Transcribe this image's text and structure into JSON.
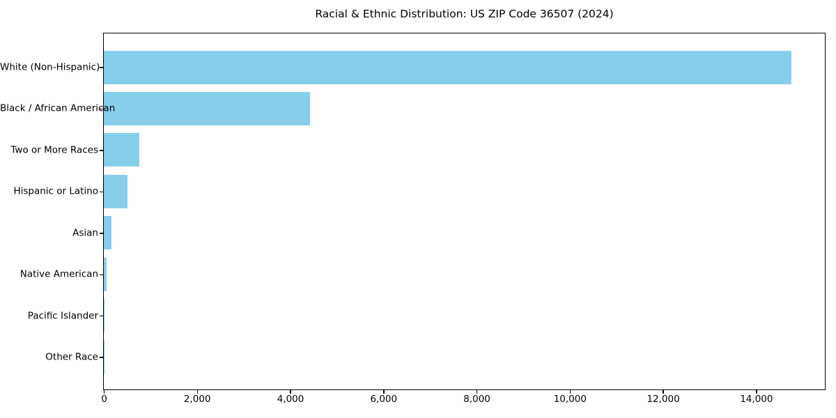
{
  "page": {
    "background_color": "#ffffff",
    "text_color": "#000000"
  },
  "chart_data": {
    "type": "bar",
    "orientation": "horizontal",
    "title": "Racial & Ethnic Distribution: US ZIP Code 36507 (2024)",
    "categories": [
      "White (Non-Hispanic)",
      "Black / African American",
      "Two or More Races",
      "Hispanic or Latino",
      "Asian",
      "Native American",
      "Pacific Islander",
      "Other Race"
    ],
    "values": [
      14750,
      4420,
      760,
      510,
      160,
      60,
      10,
      5
    ],
    "bar_color": "#87CEEB",
    "xlabel": "",
    "ylabel": "",
    "xlim": [
      0,
      15460
    ],
    "x_ticks": [
      0,
      2000,
      4000,
      6000,
      8000,
      10000,
      12000,
      14000
    ],
    "x_tick_labels": [
      "0",
      "2,000",
      "4,000",
      "6,000",
      "8,000",
      "10,000",
      "12,000",
      "14,000"
    ],
    "grid": false,
    "legend": "none"
  }
}
